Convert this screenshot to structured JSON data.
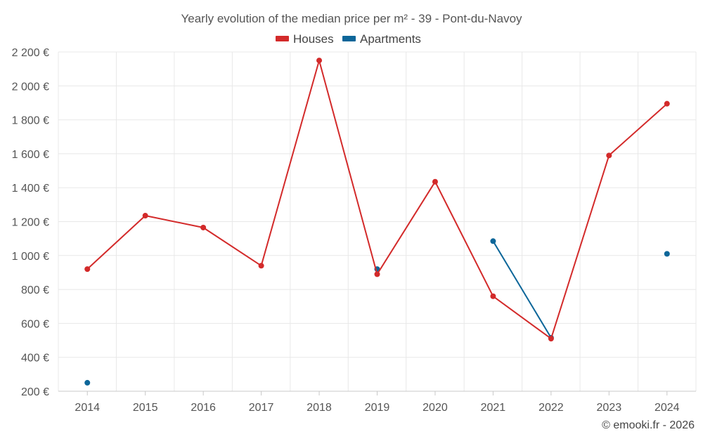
{
  "chart_data": {
    "type": "line",
    "title": "Yearly evolution of the median price per m² - 39 - Pont-du-Navoy",
    "categories": [
      "2014",
      "2015",
      "2016",
      "2017",
      "2018",
      "2019",
      "2020",
      "2021",
      "2022",
      "2023",
      "2024"
    ],
    "series": [
      {
        "name": "Houses",
        "color": "#d32a2a",
        "values": [
          920,
          1235,
          1165,
          940,
          2150,
          890,
          1435,
          760,
          510,
          1590,
          1895
        ]
      },
      {
        "name": "Apartments",
        "color": "#0d6699",
        "values": [
          250,
          null,
          null,
          null,
          null,
          920,
          null,
          1085,
          515,
          null,
          1010
        ]
      }
    ],
    "ylim": [
      200,
      2200
    ],
    "yticks": [
      200,
      400,
      600,
      800,
      1000,
      1200,
      1400,
      1600,
      1800,
      2000,
      2200
    ],
    "ytick_labels": [
      "200 €",
      "400 €",
      "600 €",
      "800 €",
      "1 000 €",
      "1 200 €",
      "1 400 €",
      "1 600 €",
      "1 800 €",
      "2 000 €",
      "2 200 €"
    ],
    "grid": true,
    "legend_position": "top-center"
  },
  "footer": "© emooki.fr - 2026"
}
